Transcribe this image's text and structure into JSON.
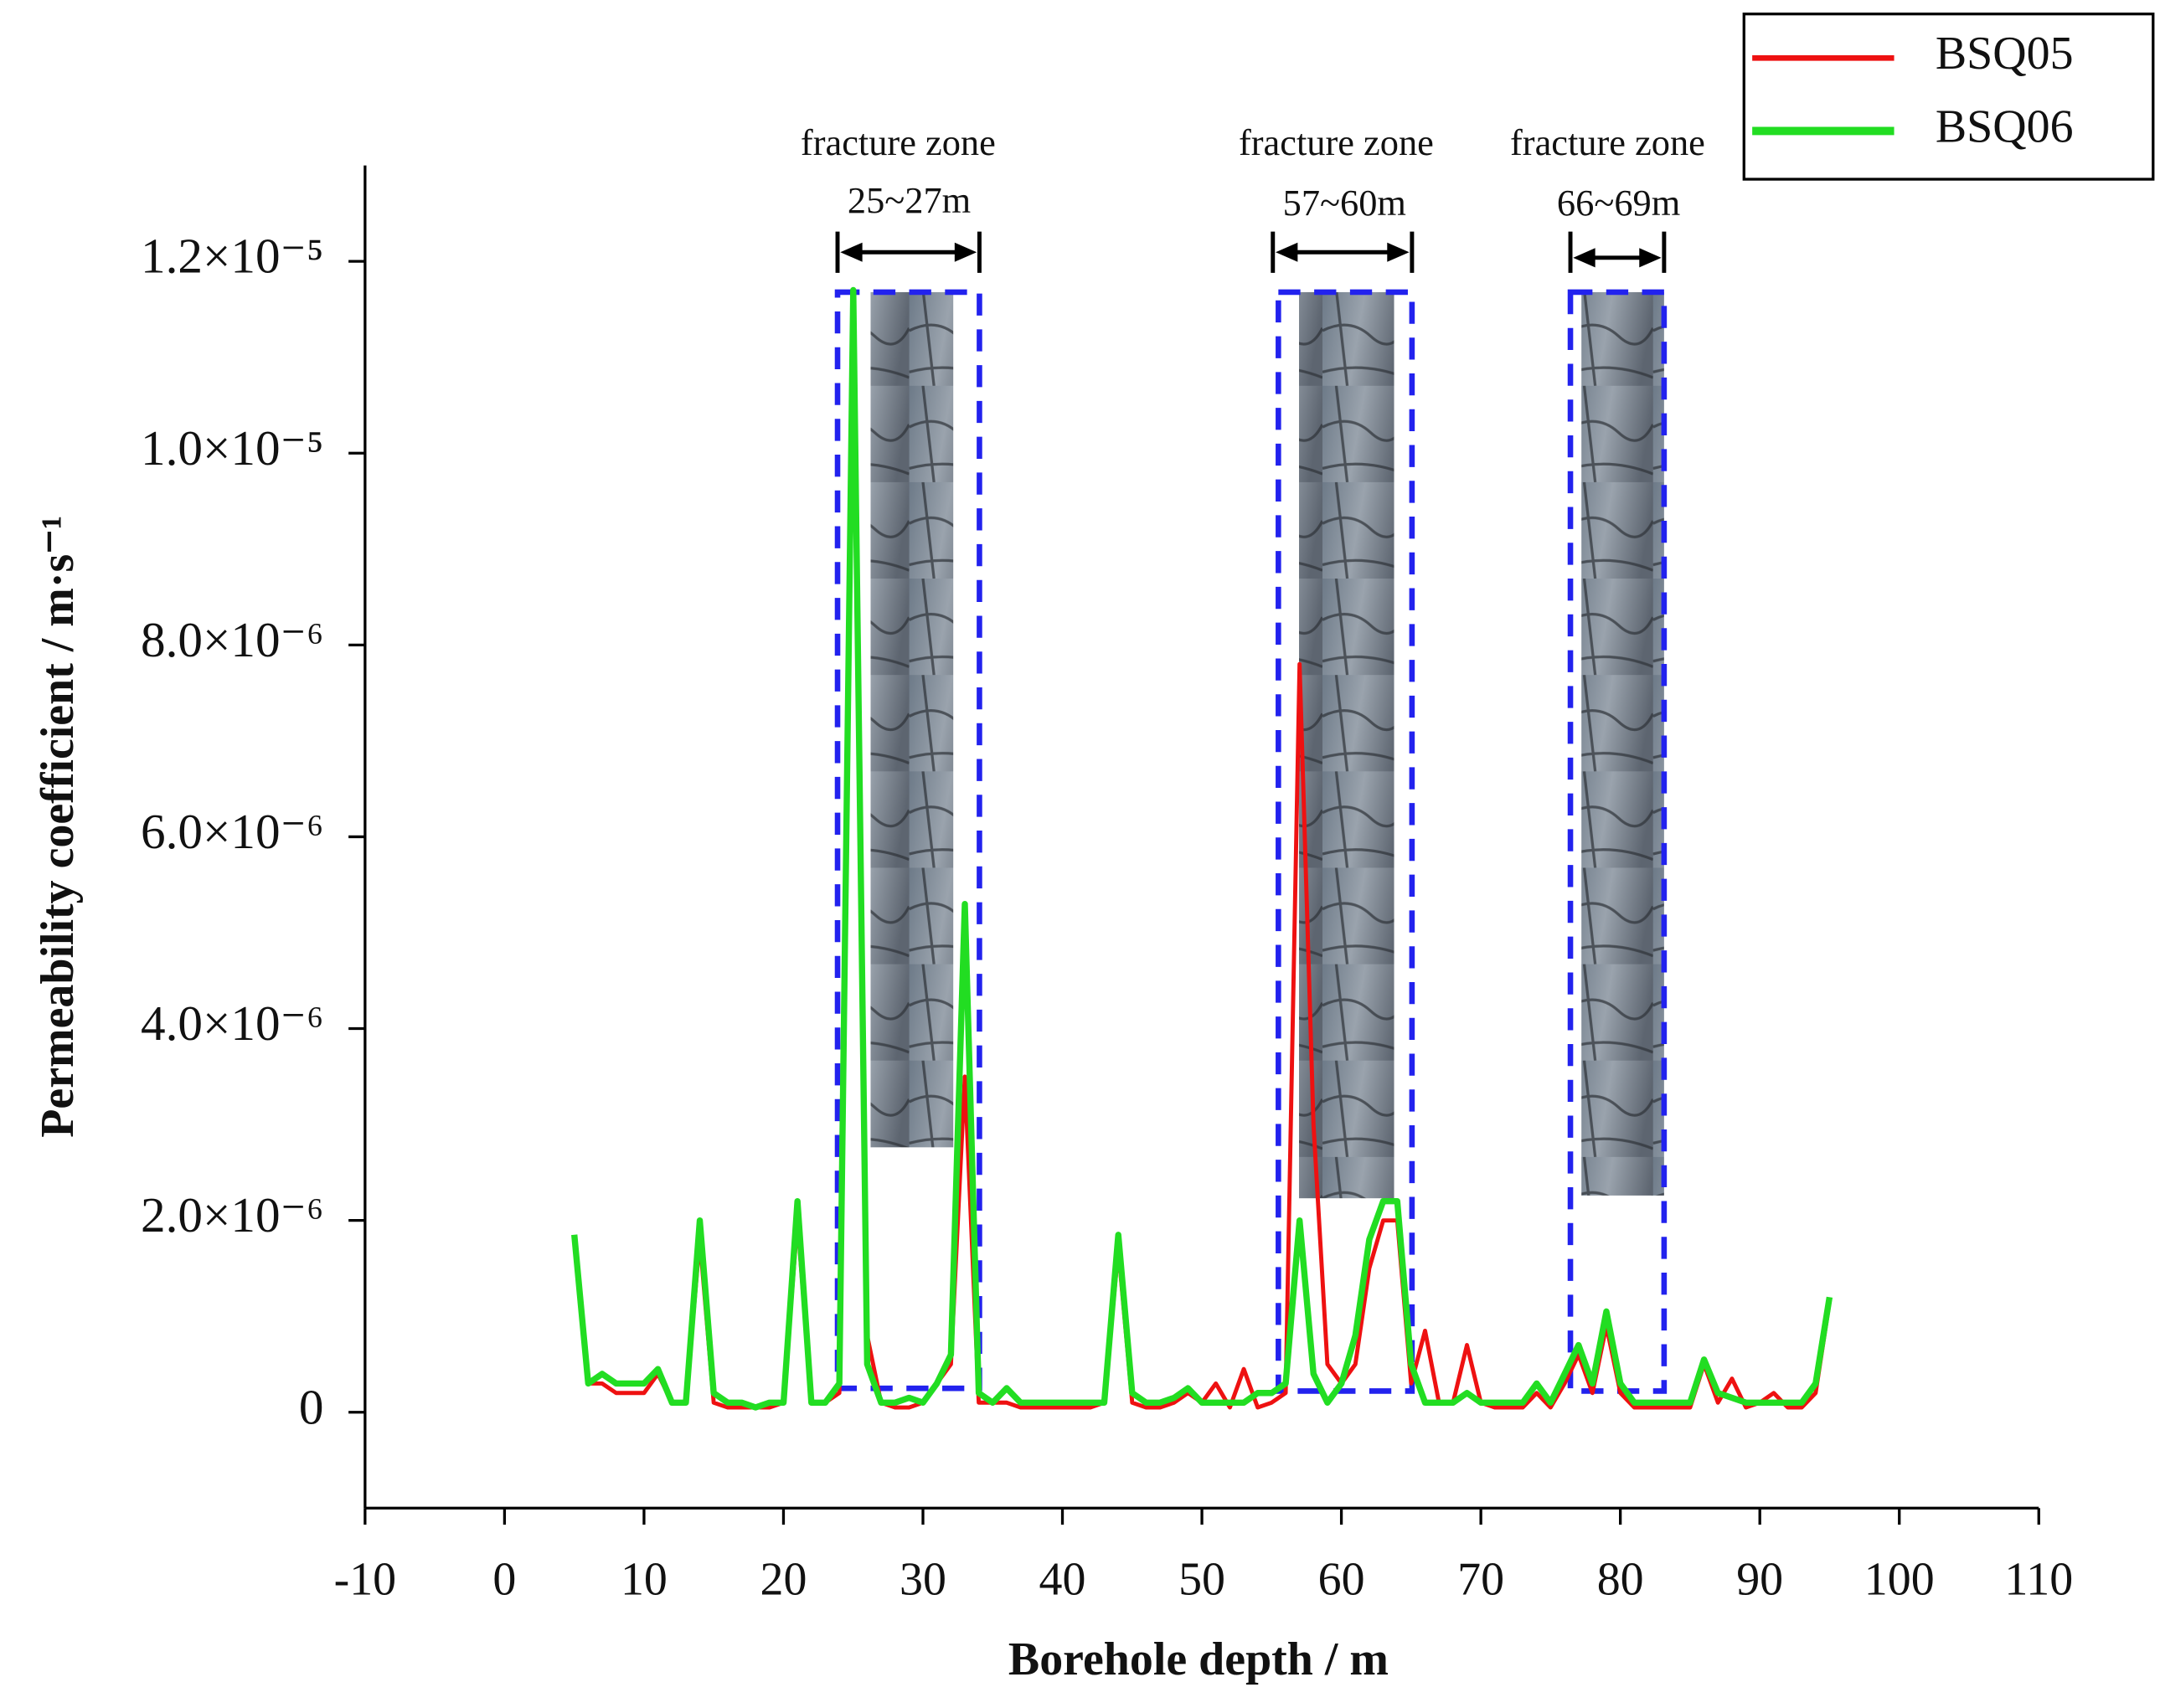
{
  "chart_data": {
    "type": "line",
    "xlabel": "Borehole depth / m",
    "ylabel": "Permeability coefficient / m·s⁻¹",
    "x": [
      5,
      6,
      7,
      8,
      9,
      10,
      11,
      12,
      13,
      14,
      15,
      16,
      17,
      18,
      19,
      20,
      21,
      22,
      23,
      24,
      25,
      26,
      27,
      28,
      29,
      30,
      31,
      32,
      33,
      34,
      35,
      36,
      37,
      38,
      39,
      40,
      41,
      42,
      43,
      44,
      45,
      46,
      47,
      48,
      49,
      50,
      51,
      52,
      53,
      54,
      55,
      56,
      57,
      58,
      59,
      60,
      61,
      62,
      63,
      64,
      65,
      66,
      67,
      68,
      69,
      70,
      71,
      72,
      73,
      74,
      75,
      76,
      77,
      78,
      79,
      80,
      81,
      82,
      83,
      84,
      85,
      86,
      87,
      88,
      89,
      90,
      91,
      92,
      93,
      94,
      95
    ],
    "series": [
      {
        "name": "BSQ05",
        "color": "#ee1111",
        "values": [
          1.8e-06,
          3e-07,
          3e-07,
          2e-07,
          2e-07,
          2e-07,
          4e-07,
          1e-07,
          1e-07,
          1.8e-06,
          1e-07,
          5e-08,
          5e-08,
          5e-08,
          5e-08,
          1e-07,
          2e-06,
          1e-07,
          1e-07,
          2e-07,
          1.17e-05,
          8e-07,
          1e-07,
          5e-08,
          5e-08,
          1e-07,
          3e-07,
          5e-07,
          3.5e-06,
          1e-07,
          1e-07,
          1e-07,
          5e-08,
          5e-08,
          5e-08,
          5e-08,
          5e-08,
          5e-08,
          1e-07,
          1.7e-06,
          1e-07,
          5e-08,
          5e-08,
          1e-07,
          2e-07,
          1e-07,
          3e-07,
          5e-08,
          4.5e-07,
          5e-08,
          1e-07,
          2e-07,
          7.8e-06,
          3e-06,
          5e-07,
          3e-07,
          5e-07,
          1.5e-06,
          2e-06,
          2e-06,
          3e-07,
          8.5e-07,
          1e-07,
          1e-07,
          7e-07,
          1e-07,
          5e-08,
          5e-08,
          5e-08,
          2e-07,
          5e-08,
          3e-07,
          6e-07,
          2e-07,
          9e-07,
          2e-07,
          5e-08,
          5e-08,
          5e-08,
          5e-08,
          5e-08,
          5e-07,
          1e-07,
          3.5e-07,
          5e-08,
          1e-07,
          2e-07,
          5e-08,
          5e-08,
          2e-07,
          1.15e-06
        ]
      },
      {
        "name": "BSQ06",
        "color": "#22dd22",
        "values": [
          1.85e-06,
          3e-07,
          4e-07,
          3e-07,
          3e-07,
          3e-07,
          4.5e-07,
          1e-07,
          1e-07,
          2e-06,
          2e-07,
          1e-07,
          1e-07,
          5e-08,
          1e-07,
          1e-07,
          2.2e-06,
          1e-07,
          1e-07,
          3e-07,
          1.17e-05,
          5e-07,
          1e-07,
          1e-07,
          1.5e-07,
          1e-07,
          3e-07,
          6e-07,
          5.3e-06,
          2e-07,
          1e-07,
          2.5e-07,
          1e-07,
          1e-07,
          1e-07,
          1e-07,
          1e-07,
          1e-07,
          1e-07,
          1.85e-06,
          2e-07,
          1e-07,
          1e-07,
          1.5e-07,
          2.5e-07,
          1e-07,
          1e-07,
          1e-07,
          1e-07,
          2e-07,
          2e-07,
          3e-07,
          2e-06,
          4e-07,
          1e-07,
          3e-07,
          8e-07,
          1.8e-06,
          2.2e-06,
          2.2e-06,
          5e-07,
          1e-07,
          1e-07,
          1e-07,
          2e-07,
          1e-07,
          1e-07,
          1e-07,
          1e-07,
          3e-07,
          1e-07,
          4e-07,
          7e-07,
          3e-07,
          1.05e-06,
          3e-07,
          1e-07,
          1e-07,
          1e-07,
          1e-07,
          1e-07,
          5.5e-07,
          2e-07,
          1.5e-07,
          1e-07,
          1e-07,
          1e-07,
          1e-07,
          1e-07,
          3e-07,
          1.2e-06
        ]
      }
    ],
    "xlim": [
      -10,
      110
    ],
    "ylim": [
      -1e-06,
      1.3e-05
    ],
    "xticks": [
      -10,
      0,
      10,
      20,
      30,
      40,
      50,
      60,
      70,
      80,
      90,
      100,
      110
    ],
    "yticks": [
      0,
      {
        "value": 2e-06,
        "label": "2.0×10⁻⁶"
      },
      {
        "value": 4e-06,
        "label": "4.0×10⁻⁶"
      },
      {
        "value": 6e-06,
        "label": "6.0×10⁻⁶"
      },
      {
        "value": 8e-06,
        "label": "8.0×10⁻⁶"
      },
      {
        "value": 1e-05,
        "label": "1.0×10⁻⁵"
      },
      {
        "value": 1.2e-05,
        "label": "1.2×10⁻⁵"
      }
    ],
    "legend": "upper right",
    "annotations": [
      {
        "text": "fracture zone",
        "range": "25~27m"
      },
      {
        "text": "fracture zone",
        "range": "57~60m"
      },
      {
        "text": "fracture zone",
        "range": "66~69m"
      }
    ]
  }
}
